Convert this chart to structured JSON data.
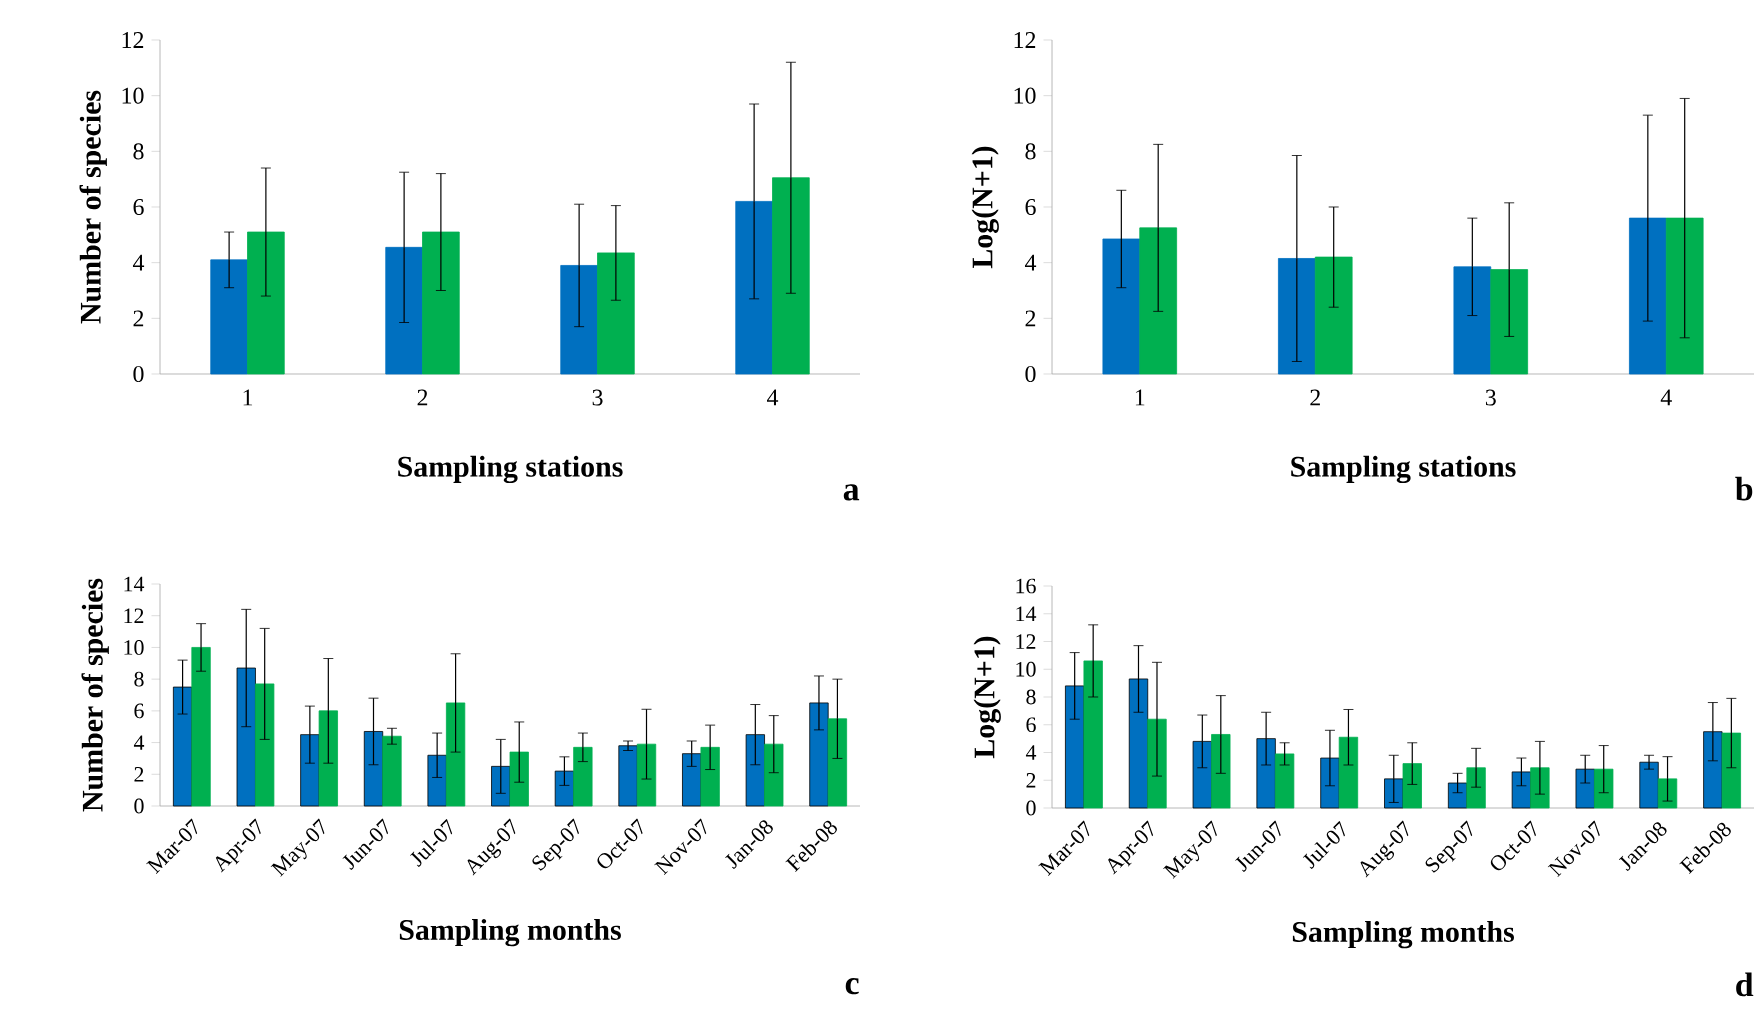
{
  "chart_data": [
    {
      "type": "bar",
      "categories": [
        "1",
        "2",
        "3",
        "4"
      ],
      "xlabel": "Sampling stations",
      "ylabel": "Number of species",
      "ylim": [
        0,
        12
      ],
      "yticks": [
        0,
        2,
        4,
        6,
        8,
        10,
        12
      ],
      "annotations": [
        "a"
      ],
      "series": [
        {
          "color": "#0070c0",
          "values": [
            4.1,
            4.55,
            3.9,
            6.2
          ],
          "errors": [
            1.0,
            2.7,
            2.2,
            3.5
          ]
        },
        {
          "color": "#00b050",
          "values": [
            5.1,
            5.1,
            4.35,
            7.05
          ],
          "errors": [
            2.3,
            2.1,
            1.7,
            4.15
          ]
        }
      ]
    },
    {
      "type": "bar",
      "categories": [
        "1",
        "2",
        "3",
        "4"
      ],
      "xlabel": "Sampling stations",
      "ylabel": "Log(N+1)",
      "ylim": [
        0,
        12
      ],
      "yticks": [
        0,
        2,
        4,
        6,
        8,
        10,
        12
      ],
      "annotations": [
        "b"
      ],
      "series": [
        {
          "color": "#0070c0",
          "values": [
            4.85,
            4.15,
            3.85,
            5.6
          ],
          "errors": [
            1.75,
            3.7,
            1.75,
            3.7
          ]
        },
        {
          "color": "#00b050",
          "values": [
            5.25,
            4.2,
            3.75,
            5.6
          ],
          "errors": [
            3.0,
            1.8,
            2.4,
            4.3
          ]
        }
      ]
    },
    {
      "type": "bar",
      "categories": [
        "Mar-07",
        "Apr-07",
        "May-07",
        "Jun-07",
        "Jul-07",
        "Aug-07",
        "Sep-07",
        "Oct-07",
        "Nov-07",
        "Jan-08",
        "Feb-08"
      ],
      "xlabel": "Sampling months",
      "ylabel": "Number of species",
      "ylim": [
        0,
        14
      ],
      "yticks": [
        0,
        2,
        4,
        6,
        8,
        10,
        12,
        14
      ],
      "annotations": [
        "c"
      ],
      "series": [
        {
          "color": "#0070c0",
          "values": [
            7.5,
            8.7,
            4.5,
            4.7,
            3.2,
            2.5,
            2.2,
            3.8,
            3.3,
            4.5,
            6.5
          ],
          "errors": [
            1.7,
            3.7,
            1.8,
            2.1,
            1.4,
            1.7,
            0.9,
            0.3,
            0.8,
            1.9,
            1.7
          ]
        },
        {
          "color": "#00b050",
          "values": [
            10.0,
            7.7,
            6.0,
            4.4,
            6.5,
            3.4,
            3.7,
            3.9,
            3.7,
            3.9,
            5.5
          ],
          "errors": [
            1.5,
            3.5,
            3.3,
            0.5,
            3.1,
            1.9,
            0.9,
            2.2,
            1.4,
            1.8,
            2.5
          ]
        }
      ]
    },
    {
      "type": "bar",
      "categories": [
        "Mar-07",
        "Apr-07",
        "May-07",
        "Jun-07",
        "Jul-07",
        "Aug-07",
        "Sep-07",
        "Oct-07",
        "Nov-07",
        "Jan-08",
        "Feb-08"
      ],
      "xlabel": "Sampling months",
      "ylabel": "Log(N+1)",
      "ylim": [
        0,
        16
      ],
      "yticks": [
        0,
        2,
        4,
        6,
        8,
        10,
        12,
        14,
        16
      ],
      "annotations": [
        "d"
      ],
      "series": [
        {
          "color": "#0070c0",
          "values": [
            8.8,
            9.3,
            4.8,
            5.0,
            3.6,
            2.1,
            1.8,
            2.6,
            2.8,
            3.3,
            5.5
          ],
          "errors": [
            2.4,
            2.4,
            1.9,
            1.9,
            2.0,
            1.7,
            0.7,
            1.0,
            1.0,
            0.5,
            2.1
          ]
        },
        {
          "color": "#00b050",
          "values": [
            10.6,
            6.4,
            5.3,
            3.9,
            5.1,
            3.2,
            2.9,
            2.9,
            2.8,
            2.1,
            5.4
          ],
          "errors": [
            2.6,
            4.1,
            2.8,
            0.8,
            2.0,
            1.5,
            1.4,
            1.9,
            1.7,
            1.6,
            2.5
          ]
        }
      ]
    }
  ]
}
